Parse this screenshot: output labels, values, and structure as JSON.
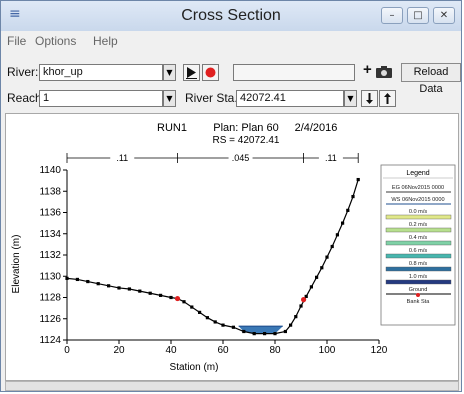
{
  "window": {
    "title": "Cross Section"
  },
  "menu": {
    "file": "File",
    "options": "Options",
    "help": "Help"
  },
  "river": {
    "label": "River:",
    "value": "khor_up"
  },
  "reach": {
    "label": "Reach:",
    "value": "1"
  },
  "river_sta": {
    "label": "River Sta.:",
    "value": "42072.41"
  },
  "toolbar": {
    "reload_label": "Reload Data",
    "plus_symbol": "+"
  },
  "plot": {
    "title_run": "RUN1",
    "title_plan": "Plan: Plan 60",
    "title_date": "2/4/2016",
    "rs_label": "RS = 42072.41",
    "n_values": [
      ".11",
      ".045",
      ".11"
    ]
  },
  "legend": {
    "title": "Legend",
    "items": [
      {
        "label": "EG 06Nov2015 0000",
        "type": "line",
        "color": "#3a3a3a"
      },
      {
        "label": "WS 06Nov2015 0000",
        "type": "line",
        "color": "#1f4f8f"
      },
      {
        "label": "0.0 m/s",
        "type": "band",
        "color": "#e0e88a"
      },
      {
        "label": "0.2 m/s",
        "type": "band",
        "color": "#b7e08e"
      },
      {
        "label": "0.4 m/s",
        "type": "band",
        "color": "#7fd1a6"
      },
      {
        "label": "0.6 m/s",
        "type": "band",
        "color": "#47b6ae"
      },
      {
        "label": "0.8 m/s",
        "type": "band",
        "color": "#2e6f9e"
      },
      {
        "label": "1.0 m/s",
        "type": "band",
        "color": "#243a80"
      },
      {
        "label": "Ground",
        "type": "ground",
        "color": "#000000"
      },
      {
        "label": "Bank Sta",
        "type": "dot",
        "color": "#e02020"
      }
    ]
  },
  "chart_data": {
    "type": "line",
    "xlabel": "Station (m)",
    "ylabel": "Elevation (m)",
    "xlim": [
      0,
      120
    ],
    "ylim": [
      1124,
      1140
    ],
    "xticks": [
      0,
      20,
      40,
      60,
      80,
      100,
      120
    ],
    "yticks": [
      1124,
      1126,
      1128,
      1130,
      1132,
      1134,
      1136,
      1138,
      1140
    ],
    "series": [
      {
        "name": "Ground",
        "x": [
          0,
          4,
          8,
          12,
          16,
          20,
          24,
          28,
          32,
          36,
          40,
          42.5,
          45,
          48,
          51,
          54,
          57,
          60,
          64,
          68,
          72,
          76,
          80,
          84,
          86,
          88,
          90,
          92,
          94,
          96,
          98,
          100,
          102,
          104,
          106,
          108,
          110,
          112
        ],
        "y": [
          1129.8,
          1129.7,
          1129.5,
          1129.3,
          1129.1,
          1128.9,
          1128.8,
          1128.6,
          1128.4,
          1128.2,
          1128.0,
          1127.9,
          1127.6,
          1127.1,
          1126.6,
          1126.1,
          1125.7,
          1125.4,
          1125.2,
          1124.8,
          1124.6,
          1124.6,
          1124.6,
          1124.8,
          1125.4,
          1126.2,
          1127.2,
          1128.1,
          1129.0,
          1129.9,
          1130.8,
          1131.8,
          1132.8,
          1133.9,
          1135.0,
          1136.2,
          1137.5,
          1139.1
        ]
      }
    ],
    "water_surface": {
      "elevation": 1125.3,
      "x_range": [
        66,
        83
      ]
    },
    "bank_stations": [
      {
        "x": 42.5,
        "y": 1127.9
      },
      {
        "x": 91,
        "y": 1127.8
      }
    ],
    "manning_n": [
      {
        "value": ".11",
        "x_range": [
          0,
          42.5
        ]
      },
      {
        "value": ".045",
        "x_range": [
          42.5,
          91
        ]
      },
      {
        "value": ".11",
        "x_range": [
          91,
          112
        ]
      }
    ],
    "grid": false,
    "legend_position": "right"
  }
}
